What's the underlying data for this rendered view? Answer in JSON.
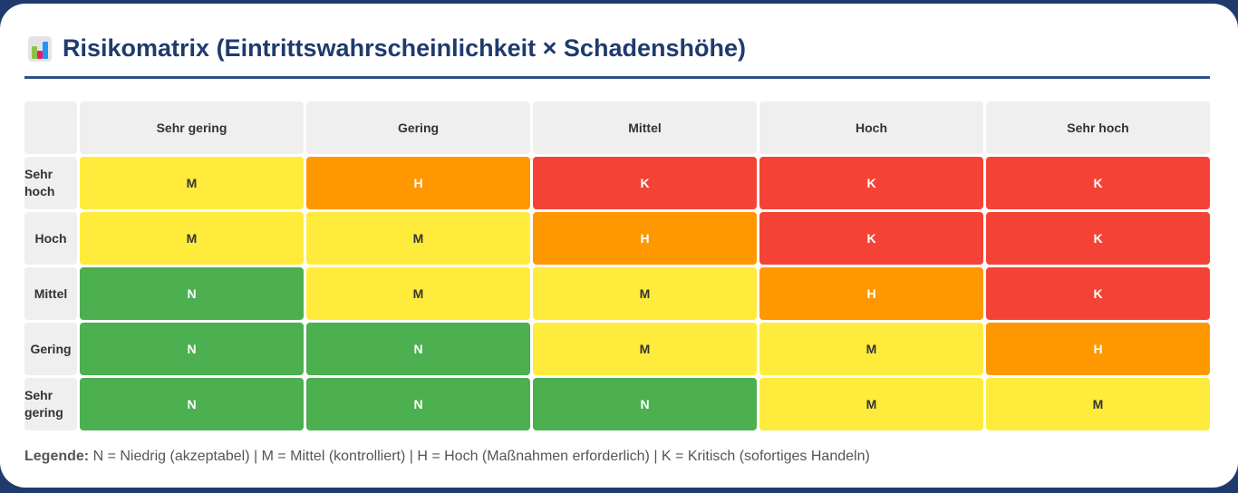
{
  "title": "Risikomatrix (Eintrittswahrscheinlichkeit × Schadenshöhe)",
  "columns": [
    "Sehr gering",
    "Gering",
    "Mittel",
    "Hoch",
    "Sehr hoch"
  ],
  "rows": [
    {
      "label": "Sehr hoch",
      "cells": [
        "M",
        "H",
        "K",
        "K",
        "K"
      ]
    },
    {
      "label": "Hoch",
      "cells": [
        "M",
        "M",
        "H",
        "K",
        "K"
      ]
    },
    {
      "label": "Mittel",
      "cells": [
        "N",
        "M",
        "M",
        "H",
        "K"
      ]
    },
    {
      "label": "Gering",
      "cells": [
        "N",
        "N",
        "M",
        "M",
        "H"
      ]
    },
    {
      "label": "Sehr gering",
      "cells": [
        "N",
        "N",
        "N",
        "M",
        "M"
      ]
    }
  ],
  "legend": {
    "label": "Legende:",
    "text": "N = Niedrig (akzeptabel) | M = Mittel (kontrolliert) | H = Hoch (Maßnahmen erforderlich) | K = Kritisch (sofortiges Handeln)"
  },
  "colors": {
    "N": "#4caf50",
    "M": "#ffeb3b",
    "H": "#ff9800",
    "K": "#f44336",
    "accent": "#1f3b6e"
  }
}
